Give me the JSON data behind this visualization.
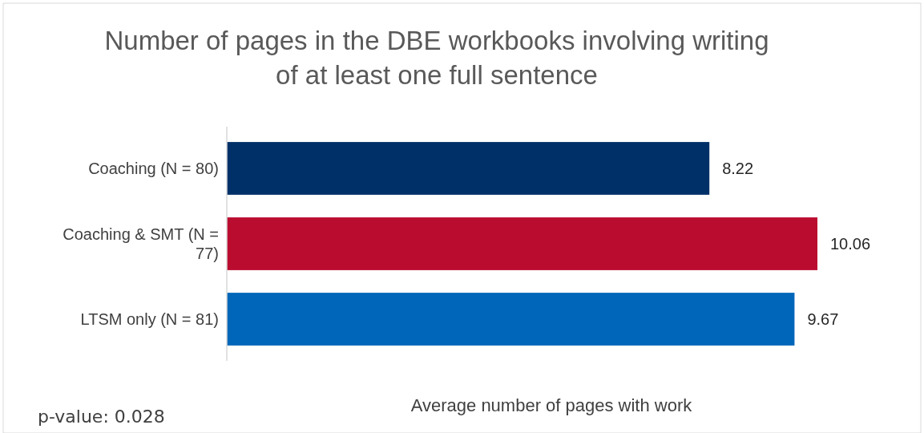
{
  "chart_data": {
    "type": "bar",
    "orientation": "horizontal",
    "title": "Number of pages in the DBE workbooks involving writing of at least one full sentence",
    "xlabel": "Average number of pages with work",
    "categories": [
      "Coaching (N = 80)",
      "Coaching & SMT (N = 77)",
      "LTSM only (N = 81)"
    ],
    "values": [
      8.22,
      10.06,
      9.67
    ],
    "colors": [
      "#003068",
      "#ba0c2f",
      "#0066b9"
    ],
    "data_labels": true,
    "annotations": [
      "p-value: 0.028"
    ]
  }
}
